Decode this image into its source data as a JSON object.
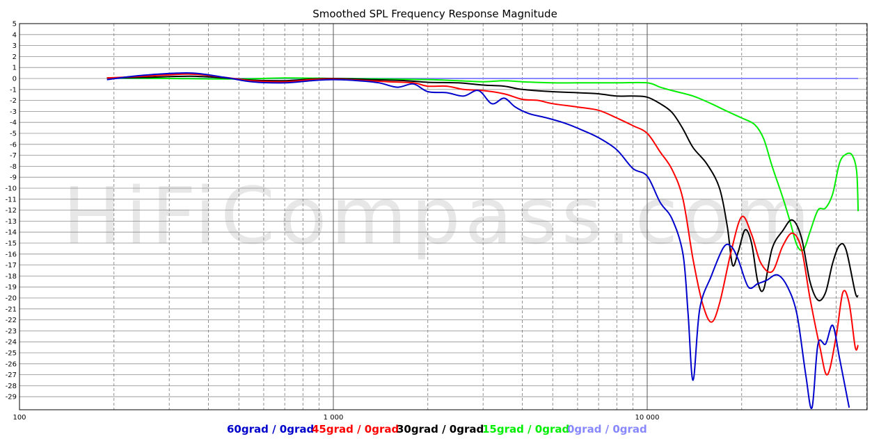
{
  "chart_data": {
    "type": "line",
    "title": "Smoothed SPL Frequency Response Magnitude",
    "watermark": "HiFiCompass.com",
    "x_scale": "log",
    "xlim": [
      100,
      50000
    ],
    "ylim": [
      -30,
      5
    ],
    "x_tick_labels": [
      {
        "value": 100,
        "label": "100"
      },
      {
        "value": 1000,
        "label": "1 000"
      },
      {
        "value": 10000,
        "label": "10 000"
      }
    ],
    "y_ticks": [
      5,
      4,
      3,
      2,
      1,
      0,
      -1,
      -2,
      -3,
      -4,
      -5,
      -6,
      -7,
      -8,
      -9,
      -10,
      -11,
      -12,
      -13,
      -14,
      -15,
      -16,
      -17,
      -18,
      -19,
      -20,
      -21,
      -22,
      -23,
      -24,
      -25,
      -26,
      -27,
      -28,
      -29
    ],
    "grid": true,
    "legend_position": "bottom",
    "series": [
      {
        "name": "60grad / 0grad",
        "color": "#0000cc",
        "points": [
          [
            190,
            -0.1
          ],
          [
            250,
            0.3
          ],
          [
            350,
            0.5
          ],
          [
            450,
            0.1
          ],
          [
            550,
            -0.3
          ],
          [
            700,
            -0.4
          ],
          [
            850,
            -0.2
          ],
          [
            1000,
            -0.1
          ],
          [
            1200,
            -0.2
          ],
          [
            1400,
            -0.4
          ],
          [
            1600,
            -0.8
          ],
          [
            1800,
            -0.5
          ],
          [
            2000,
            -1.2
          ],
          [
            2300,
            -1.3
          ],
          [
            2600,
            -1.6
          ],
          [
            2900,
            -1.1
          ],
          [
            3200,
            -2.3
          ],
          [
            3500,
            -1.8
          ],
          [
            3800,
            -2.6
          ],
          [
            4200,
            -3.2
          ],
          [
            4800,
            -3.6
          ],
          [
            5500,
            -4.1
          ],
          [
            6200,
            -4.7
          ],
          [
            7000,
            -5.4
          ],
          [
            8000,
            -6.5
          ],
          [
            9000,
            -8.2
          ],
          [
            10000,
            -8.9
          ],
          [
            11000,
            -11.3
          ],
          [
            12000,
            -12.8
          ],
          [
            13000,
            -16.0
          ],
          [
            13500,
            -21.5
          ],
          [
            14000,
            -27.5
          ],
          [
            14700,
            -21.0
          ],
          [
            16000,
            -18.0
          ],
          [
            17500,
            -15.4
          ],
          [
            18500,
            -15.3
          ],
          [
            19500,
            -16.5
          ],
          [
            21000,
            -19.0
          ],
          [
            22500,
            -18.7
          ],
          [
            24000,
            -18.4
          ],
          [
            26000,
            -17.9
          ],
          [
            28000,
            -19.0
          ],
          [
            30000,
            -21.5
          ],
          [
            32000,
            -27.0
          ],
          [
            33500,
            -30.0
          ],
          [
            35000,
            -24.2
          ],
          [
            37000,
            -24.2
          ],
          [
            39000,
            -22.5
          ],
          [
            41000,
            -25.5
          ],
          [
            44000,
            -30.0
          ]
        ]
      },
      {
        "name": "45grad / 0grad",
        "color": "#ff0000",
        "points": [
          [
            190,
            0.05
          ],
          [
            250,
            0.2
          ],
          [
            350,
            0.4
          ],
          [
            450,
            0.1
          ],
          [
            550,
            -0.2
          ],
          [
            700,
            -0.3
          ],
          [
            850,
            -0.1
          ],
          [
            1000,
            -0.05
          ],
          [
            1200,
            -0.15
          ],
          [
            1500,
            -0.3
          ],
          [
            1800,
            -0.4
          ],
          [
            2000,
            -0.7
          ],
          [
            2300,
            -0.7
          ],
          [
            2600,
            -1.0
          ],
          [
            3000,
            -1.1
          ],
          [
            3500,
            -1.4
          ],
          [
            4000,
            -1.9
          ],
          [
            4500,
            -2.0
          ],
          [
            5000,
            -2.3
          ],
          [
            6000,
            -2.6
          ],
          [
            7000,
            -2.9
          ],
          [
            8000,
            -3.6
          ],
          [
            9000,
            -4.3
          ],
          [
            10000,
            -5.0
          ],
          [
            11000,
            -6.7
          ],
          [
            12000,
            -8.3
          ],
          [
            13000,
            -11.0
          ],
          [
            14000,
            -16.5
          ],
          [
            15000,
            -20.5
          ],
          [
            16000,
            -22.2
          ],
          [
            17000,
            -20.5
          ],
          [
            18500,
            -15.8
          ],
          [
            20000,
            -12.6
          ],
          [
            21500,
            -14.2
          ],
          [
            23000,
            -16.8
          ],
          [
            25000,
            -17.6
          ],
          [
            27000,
            -15.3
          ],
          [
            29000,
            -14.1
          ],
          [
            31000,
            -15.5
          ],
          [
            33000,
            -20.0
          ],
          [
            35500,
            -24.5
          ],
          [
            37500,
            -27.0
          ],
          [
            40000,
            -23.5
          ],
          [
            42000,
            -19.5
          ],
          [
            44000,
            -20.5
          ],
          [
            46000,
            -24.5
          ],
          [
            47000,
            -24.3
          ]
        ]
      },
      {
        "name": "30grad / 0grad",
        "color": "#000000",
        "points": [
          [
            190,
            0.05
          ],
          [
            250,
            0.1
          ],
          [
            350,
            0.2
          ],
          [
            450,
            0.05
          ],
          [
            550,
            -0.15
          ],
          [
            700,
            -0.2
          ],
          [
            850,
            -0.05
          ],
          [
            1000,
            0.0
          ],
          [
            1300,
            -0.1
          ],
          [
            1700,
            -0.2
          ],
          [
            2000,
            -0.35
          ],
          [
            2500,
            -0.4
          ],
          [
            3000,
            -0.6
          ],
          [
            3500,
            -0.7
          ],
          [
            4000,
            -1.0
          ],
          [
            5000,
            -1.2
          ],
          [
            6000,
            -1.3
          ],
          [
            7000,
            -1.4
          ],
          [
            8000,
            -1.6
          ],
          [
            9000,
            -1.6
          ],
          [
            10000,
            -1.7
          ],
          [
            11000,
            -2.3
          ],
          [
            12000,
            -3.1
          ],
          [
            13000,
            -4.6
          ],
          [
            14000,
            -6.3
          ],
          [
            15500,
            -7.8
          ],
          [
            17000,
            -10.0
          ],
          [
            18000,
            -13.5
          ],
          [
            18700,
            -17.0
          ],
          [
            19500,
            -15.8
          ],
          [
            20500,
            -13.8
          ],
          [
            21500,
            -15.0
          ],
          [
            22500,
            -18.5
          ],
          [
            23500,
            -19.2
          ],
          [
            25000,
            -15.5
          ],
          [
            27000,
            -13.9
          ],
          [
            29000,
            -12.9
          ],
          [
            31000,
            -14.5
          ],
          [
            33000,
            -18.5
          ],
          [
            35000,
            -20.2
          ],
          [
            37000,
            -19.5
          ],
          [
            39000,
            -16.8
          ],
          [
            41000,
            -15.2
          ],
          [
            43000,
            -15.6
          ],
          [
            46000,
            -19.5
          ],
          [
            47000,
            -19.8
          ]
        ]
      },
      {
        "name": "15grad / 0grad",
        "color": "#00ee00",
        "points": [
          [
            190,
            0.05
          ],
          [
            300,
            0.0
          ],
          [
            500,
            -0.05
          ],
          [
            700,
            0.05
          ],
          [
            1000,
            0.0
          ],
          [
            1500,
            -0.05
          ],
          [
            2000,
            -0.1
          ],
          [
            2500,
            -0.2
          ],
          [
            3000,
            -0.3
          ],
          [
            3500,
            -0.2
          ],
          [
            4000,
            -0.3
          ],
          [
            5000,
            -0.4
          ],
          [
            6000,
            -0.4
          ],
          [
            8000,
            -0.4
          ],
          [
            10000,
            -0.4
          ],
          [
            11000,
            -0.8
          ],
          [
            12000,
            -1.1
          ],
          [
            14000,
            -1.6
          ],
          [
            16000,
            -2.3
          ],
          [
            18000,
            -3.0
          ],
          [
            20000,
            -3.6
          ],
          [
            22000,
            -4.2
          ],
          [
            23500,
            -5.5
          ],
          [
            25000,
            -8.0
          ],
          [
            27000,
            -10.8
          ],
          [
            28500,
            -13.0
          ],
          [
            30000,
            -15.2
          ],
          [
            31500,
            -15.6
          ],
          [
            33000,
            -14.0
          ],
          [
            35000,
            -12.0
          ],
          [
            37000,
            -11.8
          ],
          [
            39000,
            -10.5
          ],
          [
            41000,
            -7.7
          ],
          [
            43000,
            -6.9
          ],
          [
            45000,
            -7.0
          ],
          [
            46500,
            -8.5
          ],
          [
            47000,
            -12.1
          ]
        ]
      },
      {
        "name": "0grad / 0grad",
        "color": "#8888ff",
        "points": [
          [
            190,
            0.0
          ],
          [
            47000,
            0.0
          ]
        ]
      }
    ]
  }
}
